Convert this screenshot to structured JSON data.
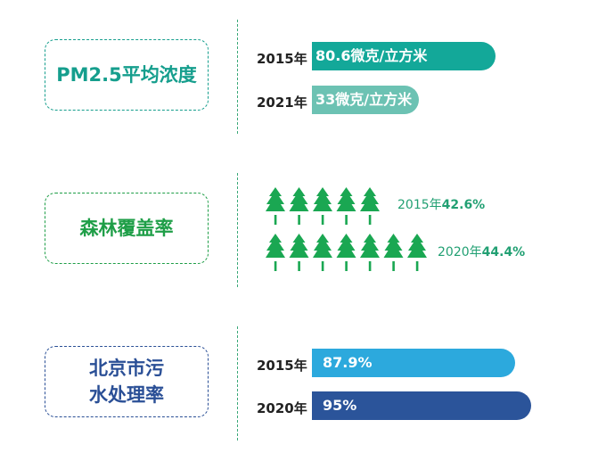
{
  "colors": {
    "pm_dark": "#13a899",
    "pm_light": "#6cc2b3",
    "pm_text": "#159e8d",
    "forest_text": "#1e9e47",
    "forest_tree": "#1aa752",
    "water_text": "#2a4f96",
    "water_light": "#2ca9dd",
    "water_dark": "#2b549a",
    "divider": "#3aa878"
  },
  "chart_data": [
    {
      "type": "bar",
      "title": "PM2.5平均浓度",
      "categories": [
        "2015年",
        "2021年"
      ],
      "values": [
        80.6,
        33
      ],
      "value_labels": [
        "80.6微克/立方米",
        "33微克/立方米"
      ],
      "unit": "微克/立方米"
    },
    {
      "type": "pictograph",
      "title": "森林覆盖率",
      "categories": [
        "2015年",
        "2020年"
      ],
      "values": [
        42.6,
        44.4
      ],
      "icon_counts": [
        5,
        7
      ],
      "icon": "tree-icon",
      "value_labels": [
        "42.6%",
        "44.4%"
      ],
      "unit": "%"
    },
    {
      "type": "bar",
      "title": "北京市污水处理率",
      "categories": [
        "2015年",
        "2020年"
      ],
      "values": [
        87.9,
        95
      ],
      "value_labels": [
        "87.9%",
        "95%"
      ],
      "unit": "%"
    }
  ]
}
